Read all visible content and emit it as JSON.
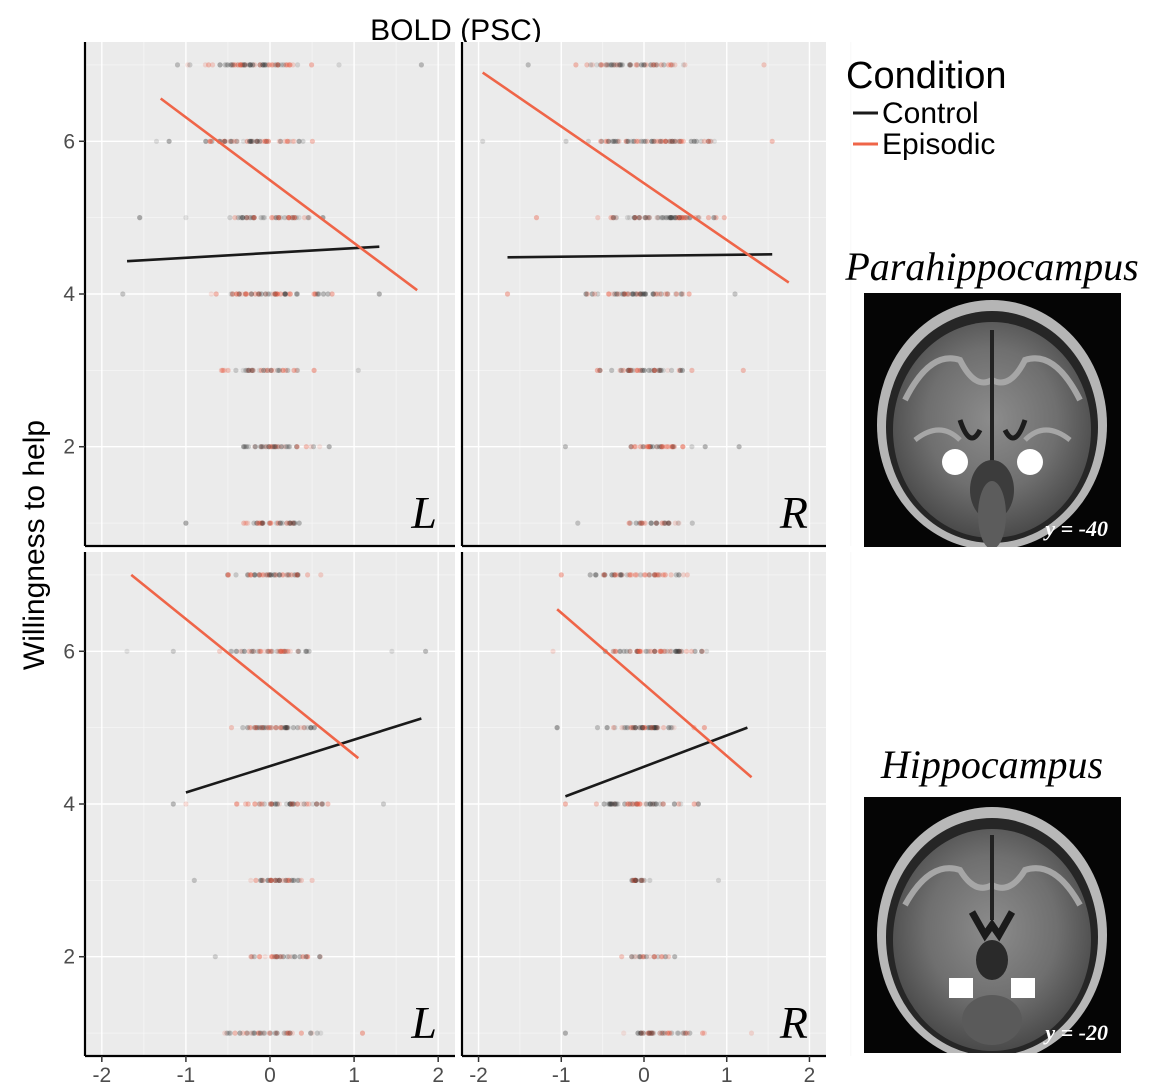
{
  "figure": {
    "top_title": "BOLD (PSC)",
    "ylabel": "Willingness to help",
    "legend": {
      "title": "Condition",
      "items": [
        {
          "label": "Control",
          "color": "#1a1a1a"
        },
        {
          "label": "Episodic",
          "color": "#ef6548"
        }
      ]
    },
    "regions": [
      {
        "title": "Parahippocampus",
        "slice_caption": "y = -40"
      },
      {
        "title": "Hippocampus",
        "slice_caption": "y = -20"
      }
    ]
  },
  "chart_data": {
    "type": "scatter",
    "xlim": [
      -2.2,
      2.2
    ],
    "ylim": [
      0.7,
      7.3
    ],
    "xticks": [
      -2,
      -1,
      0,
      1,
      2
    ],
    "yticks": [
      2,
      4,
      6
    ],
    "grid": true,
    "panels": [
      {
        "region": "Parahippocampus",
        "side": "L",
        "row": 0,
        "col": 0,
        "series": [
          {
            "name": "Control",
            "color": "#1a1a1a",
            "fit": [
              [
                -1.7,
                4.43
              ],
              [
                1.3,
                4.62
              ]
            ]
          },
          {
            "name": "Episodic",
            "color": "#ef6548",
            "fit": [
              [
                -1.3,
                6.56
              ],
              [
                1.75,
                4.05
              ]
            ]
          }
        ],
        "points": [
          {
            "y": 7,
            "ranges": [
              [
                -1.2,
                1.0
              ]
            ],
            "outliers": [
              -1.1,
              1.8
            ]
          },
          {
            "y": 6,
            "ranges": [
              [
                -1.1,
                0.9
              ]
            ],
            "outliers": [
              -1.35,
              -1.2
            ]
          },
          {
            "y": 5,
            "ranges": [
              [
                -0.8,
                0.85
              ]
            ],
            "outliers": [
              -1.55,
              -1.0
            ]
          },
          {
            "y": 4,
            "ranges": [
              [
                -1.05,
                1.0
              ]
            ],
            "outliers": [
              -1.75,
              1.3
            ]
          },
          {
            "y": 3,
            "ranges": [
              [
                -0.8,
                0.7
              ]
            ],
            "outliers": [
              1.05
            ]
          },
          {
            "y": 2,
            "ranges": [
              [
                -0.65,
                0.9
              ]
            ],
            "outliers": []
          },
          {
            "y": 1,
            "ranges": [
              [
                -0.6,
                0.7
              ]
            ],
            "outliers": [
              -1.0
            ]
          }
        ]
      },
      {
        "region": "Parahippocampus",
        "side": "R",
        "row": 0,
        "col": 1,
        "series": [
          {
            "name": "Control",
            "color": "#1a1a1a",
            "fit": [
              [
                -1.65,
                4.48
              ],
              [
                1.55,
                4.52
              ]
            ]
          },
          {
            "name": "Episodic",
            "color": "#ef6548",
            "fit": [
              [
                -1.95,
                6.9
              ],
              [
                1.75,
                4.15
              ]
            ]
          }
        ],
        "points": [
          {
            "y": 7,
            "ranges": [
              [
                -1.0,
                0.85
              ]
            ],
            "outliers": [
              -1.4,
              1.45
            ]
          },
          {
            "y": 6,
            "ranges": [
              [
                -1.1,
                1.3
              ]
            ],
            "outliers": [
              -1.95,
              1.55
            ]
          },
          {
            "y": 5,
            "ranges": [
              [
                -0.9,
                1.35
              ]
            ],
            "outliers": [
              -1.3
            ]
          },
          {
            "y": 4,
            "ranges": [
              [
                -1.0,
                0.9
              ]
            ],
            "outliers": [
              -1.65,
              1.1
            ]
          },
          {
            "y": 3,
            "ranges": [
              [
                -0.75,
                0.85
              ]
            ],
            "outliers": [
              1.2
            ]
          },
          {
            "y": 2,
            "ranges": [
              [
                -0.5,
                0.9
              ]
            ],
            "outliers": [
              -0.95,
              1.15
            ]
          },
          {
            "y": 1,
            "ranges": [
              [
                -0.45,
                0.65
              ]
            ],
            "outliers": [
              -0.8
            ]
          }
        ]
      },
      {
        "region": "Hippocampus",
        "side": "L",
        "row": 1,
        "col": 0,
        "series": [
          {
            "name": "Control",
            "color": "#1a1a1a",
            "fit": [
              [
                -1.0,
                4.15
              ],
              [
                1.8,
                5.12
              ]
            ]
          },
          {
            "name": "Episodic",
            "color": "#ef6548",
            "fit": [
              [
                -1.65,
                7.0
              ],
              [
                1.05,
                4.6
              ]
            ]
          }
        ],
        "points": [
          {
            "y": 7,
            "ranges": [
              [
                -0.75,
                0.85
              ]
            ],
            "outliers": []
          },
          {
            "y": 6,
            "ranges": [
              [
                -0.9,
                0.8
              ]
            ],
            "outliers": [
              -1.7,
              -1.15,
              1.45,
              1.85
            ]
          },
          {
            "y": 5,
            "ranges": [
              [
                -0.75,
                0.9
              ]
            ],
            "outliers": []
          },
          {
            "y": 4,
            "ranges": [
              [
                -0.6,
                1.0
              ]
            ],
            "outliers": [
              -1.15,
              -1.0,
              1.35
            ]
          },
          {
            "y": 3,
            "ranges": [
              [
                -0.5,
                0.8
              ]
            ],
            "outliers": [
              -0.9
            ]
          },
          {
            "y": 2,
            "ranges": [
              [
                -0.45,
                0.75
              ]
            ],
            "outliers": [
              -0.65
            ]
          },
          {
            "y": 1,
            "ranges": [
              [
                -0.8,
                0.7
              ]
            ],
            "outliers": [
              1.1
            ]
          }
        ]
      },
      {
        "region": "Hippocampus",
        "side": "R",
        "row": 1,
        "col": 1,
        "series": [
          {
            "name": "Control",
            "color": "#1a1a1a",
            "fit": [
              [
                -0.95,
                4.1
              ],
              [
                1.25,
                5.0
              ]
            ]
          },
          {
            "name": "Episodic",
            "color": "#ef6548",
            "fit": [
              [
                -1.05,
                6.55
              ],
              [
                1.3,
                4.35
              ]
            ]
          }
        ],
        "points": [
          {
            "y": 7,
            "ranges": [
              [
                -0.9,
                0.8
              ]
            ],
            "outliers": [
              -1.0
            ]
          },
          {
            "y": 6,
            "ranges": [
              [
                -0.9,
                1.2
              ]
            ],
            "outliers": [
              -1.1
            ]
          },
          {
            "y": 5,
            "ranges": [
              [
                -0.8,
                0.9
              ]
            ],
            "outliers": [
              -1.05
            ]
          },
          {
            "y": 4,
            "ranges": [
              [
                -0.9,
                0.9
              ]
            ],
            "outliers": [
              -0.95
            ]
          },
          {
            "y": 3,
            "ranges": [
              [
                -0.35,
                0.35
              ]
            ],
            "outliers": [
              0.9
            ]
          },
          {
            "y": 2,
            "ranges": [
              [
                -0.5,
                0.5
              ]
            ],
            "outliers": []
          },
          {
            "y": 1,
            "ranges": [
              [
                -0.5,
                0.9
              ]
            ],
            "outliers": [
              -0.95,
              1.3
            ]
          }
        ]
      }
    ]
  }
}
